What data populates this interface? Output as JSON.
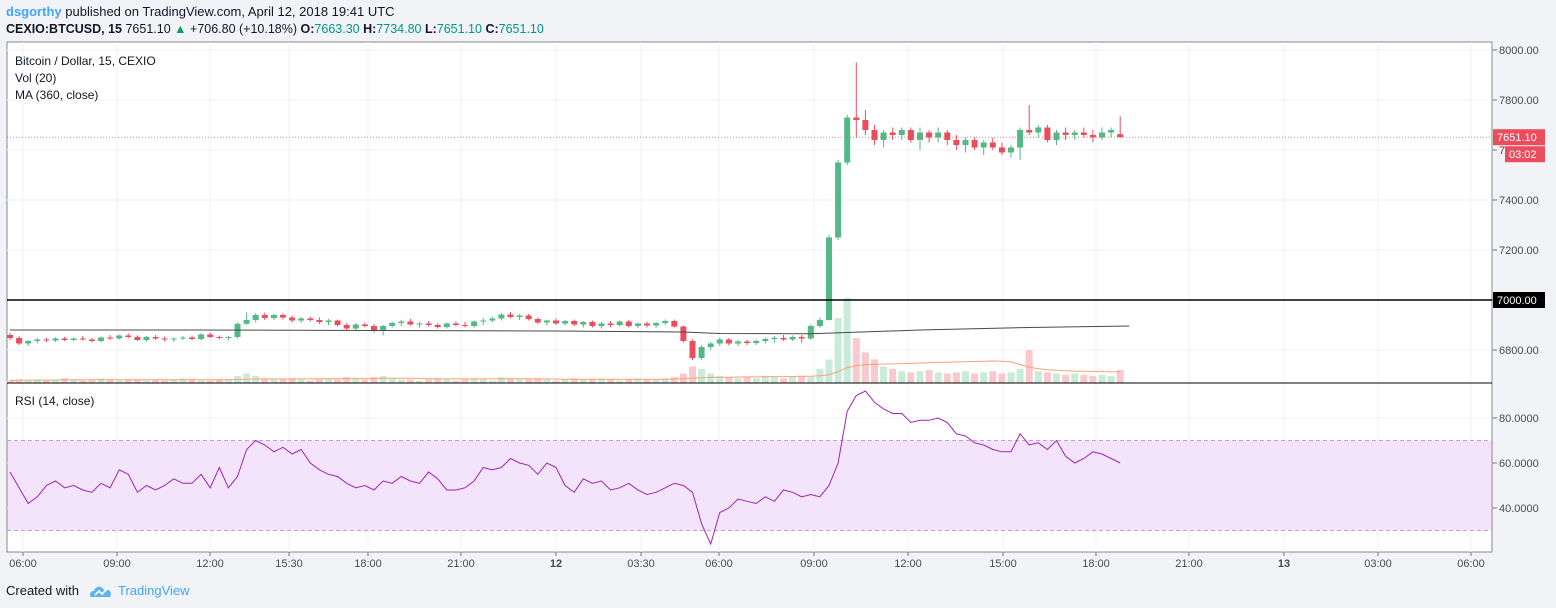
{
  "header": {
    "author": "dsgorthy",
    "published_text": "published on TradingView.com, April 12, 2018 19:41 UTC",
    "symbol": "CEXIO:BTCUSD, 15",
    "price": "7651.10",
    "change_arrow": "▲",
    "change": "+706.80 (+10.18%)",
    "open_label": "O:",
    "open": "7663.30",
    "high_label": "H:",
    "high": "7734.80",
    "low_label": "L:",
    "low": "7651.10",
    "close_label": "C:",
    "close": "7651.10"
  },
  "legend": {
    "title": "Bitcoin / Dollar, 15, CEXIO",
    "vol": "Vol (20)",
    "ma": "MA (360, close)",
    "rsi": "RSI (14, close)"
  },
  "footer": {
    "created_with": "Created with",
    "brand": "TradingView"
  },
  "colors": {
    "up": "#53b987",
    "down": "#eb4d5c",
    "ma": "#4a4a4a",
    "vol_ma": "#f7a277",
    "rsi_line": "#9c27b0",
    "rsi_band": "#f3e3fb",
    "level_line": "#000000",
    "price_badge": "#eb4d5c"
  },
  "chart_data": [
    {
      "type": "candlestick",
      "title": "Bitcoin / Dollar, 15, CEXIO",
      "ylim": [
        6660,
        8030
      ],
      "y_ticks": [
        "8000.00",
        "7800.00",
        "7600.00",
        "7400.00",
        "7200.00",
        "7000.00",
        "6800.00"
      ],
      "x_ticks": [
        "06:00",
        "09:00",
        "12:00",
        "15:30",
        "18:00",
        "21:00",
        "12",
        "03:30",
        "06:00",
        "09:00",
        "12:00",
        "15:00",
        "18:00",
        "21:00",
        "13",
        "03:00",
        "06:00"
      ],
      "horizontal_line": {
        "value": 7000,
        "label": "7000.00"
      },
      "last_price": {
        "value": 7651.1,
        "label": "7651.10",
        "countdown": "03:02"
      },
      "candles": [
        [
          6860,
          6868,
          6840,
          6848
        ],
        [
          6848,
          6856,
          6820,
          6826
        ],
        [
          6826,
          6840,
          6816,
          6836
        ],
        [
          6836,
          6848,
          6826,
          6842
        ],
        [
          6842,
          6850,
          6832,
          6838
        ],
        [
          6838,
          6850,
          6832,
          6846
        ],
        [
          6846,
          6852,
          6836,
          6840
        ],
        [
          6840,
          6850,
          6834,
          6846
        ],
        [
          6846,
          6856,
          6838,
          6842
        ],
        [
          6842,
          6848,
          6830,
          6836
        ],
        [
          6836,
          6854,
          6830,
          6850
        ],
        [
          6850,
          6860,
          6840,
          6846
        ],
        [
          6846,
          6862,
          6842,
          6858
        ],
        [
          6858,
          6866,
          6846,
          6852
        ],
        [
          6852,
          6858,
          6836,
          6840
        ],
        [
          6840,
          6856,
          6834,
          6852
        ],
        [
          6852,
          6860,
          6840,
          6846
        ],
        [
          6846,
          6854,
          6834,
          6842
        ],
        [
          6842,
          6850,
          6832,
          6846
        ],
        [
          6846,
          6856,
          6840,
          6850
        ],
        [
          6850,
          6858,
          6840,
          6844
        ],
        [
          6844,
          6868,
          6838,
          6862
        ],
        [
          6862,
          6870,
          6848,
          6852
        ],
        [
          6852,
          6858,
          6842,
          6848
        ],
        [
          6848,
          6856,
          6838,
          6852
        ],
        [
          6852,
          6910,
          6846,
          6905
        ],
        [
          6905,
          6950,
          6900,
          6920
        ],
        [
          6920,
          6948,
          6910,
          6940
        ],
        [
          6940,
          6950,
          6920,
          6928
        ],
        [
          6928,
          6944,
          6920,
          6940
        ],
        [
          6940,
          6948,
          6922,
          6930
        ],
        [
          6930,
          6938,
          6910,
          6918
        ],
        [
          6918,
          6932,
          6908,
          6926
        ],
        [
          6926,
          6934,
          6914,
          6920
        ],
        [
          6920,
          6930,
          6904,
          6912
        ],
        [
          6912,
          6924,
          6900,
          6918
        ],
        [
          6918,
          6922,
          6894,
          6900
        ],
        [
          6900,
          6908,
          6880,
          6886
        ],
        [
          6886,
          6908,
          6880,
          6902
        ],
        [
          6902,
          6910,
          6890,
          6896
        ],
        [
          6896,
          6904,
          6870,
          6876
        ],
        [
          6876,
          6900,
          6858,
          6896
        ],
        [
          6896,
          6914,
          6890,
          6908
        ],
        [
          6908,
          6920,
          6896,
          6914
        ],
        [
          6914,
          6924,
          6898,
          6902
        ],
        [
          6902,
          6912,
          6890,
          6906
        ],
        [
          6906,
          6916,
          6894,
          6900
        ],
        [
          6900,
          6908,
          6886,
          6892
        ],
        [
          6892,
          6910,
          6886,
          6906
        ],
        [
          6906,
          6914,
          6894,
          6900
        ],
        [
          6900,
          6912,
          6890,
          6896
        ],
        [
          6896,
          6918,
          6890,
          6914
        ],
        [
          6914,
          6928,
          6900,
          6918
        ],
        [
          6918,
          6934,
          6910,
          6926
        ],
        [
          6926,
          6948,
          6918,
          6942
        ],
        [
          6942,
          6952,
          6926,
          6932
        ],
        [
          6932,
          6944,
          6920,
          6938
        ],
        [
          6938,
          6944,
          6918,
          6924
        ],
        [
          6924,
          6930,
          6904,
          6910
        ],
        [
          6910,
          6922,
          6898,
          6918
        ],
        [
          6918,
          6926,
          6900,
          6906
        ],
        [
          6906,
          6920,
          6898,
          6916
        ],
        [
          6916,
          6922,
          6896,
          6902
        ],
        [
          6902,
          6916,
          6890,
          6912
        ],
        [
          6912,
          6918,
          6890,
          6896
        ],
        [
          6896,
          6912,
          6886,
          6906
        ],
        [
          6906,
          6916,
          6890,
          6900
        ],
        [
          6900,
          6918,
          6894,
          6914
        ],
        [
          6914,
          6920,
          6890,
          6896
        ],
        [
          6896,
          6910,
          6888,
          6906
        ],
        [
          6906,
          6914,
          6890,
          6898
        ],
        [
          6898,
          6912,
          6888,
          6908
        ],
        [
          6908,
          6922,
          6900,
          6916
        ],
        [
          6916,
          6922,
          6890,
          6894
        ],
        [
          6894,
          6898,
          6830,
          6836
        ],
        [
          6836,
          6842,
          6760,
          6768
        ],
        [
          6768,
          6820,
          6760,
          6812
        ],
        [
          6812,
          6832,
          6800,
          6826
        ],
        [
          6826,
          6850,
          6816,
          6842
        ],
        [
          6842,
          6848,
          6818,
          6826
        ],
        [
          6826,
          6840,
          6816,
          6834
        ],
        [
          6834,
          6842,
          6820,
          6828
        ],
        [
          6828,
          6842,
          6820,
          6836
        ],
        [
          6836,
          6850,
          6826,
          6844
        ],
        [
          6844,
          6856,
          6830,
          6848
        ],
        [
          6848,
          6860,
          6836,
          6842
        ],
        [
          6842,
          6858,
          6836,
          6852
        ],
        [
          6852,
          6860,
          6830,
          6846
        ],
        [
          6846,
          6902,
          6840,
          6896
        ],
        [
          6896,
          6930,
          6890,
          6920
        ],
        [
          6920,
          7260,
          6918,
          7250
        ],
        [
          7250,
          7560,
          7240,
          7550
        ],
        [
          7550,
          7740,
          7540,
          7730
        ],
        [
          7730,
          7950,
          7650,
          7720
        ],
        [
          7720,
          7760,
          7660,
          7680
        ],
        [
          7680,
          7700,
          7620,
          7640
        ],
        [
          7640,
          7680,
          7610,
          7670
        ],
        [
          7670,
          7690,
          7640,
          7660
        ],
        [
          7660,
          7690,
          7640,
          7680
        ],
        [
          7680,
          7690,
          7630,
          7640
        ],
        [
          7640,
          7690,
          7600,
          7670
        ],
        [
          7670,
          7680,
          7630,
          7650
        ],
        [
          7650,
          7690,
          7630,
          7670
        ],
        [
          7670,
          7680,
          7620,
          7640
        ],
        [
          7640,
          7660,
          7600,
          7620
        ],
        [
          7620,
          7650,
          7590,
          7640
        ],
        [
          7640,
          7650,
          7600,
          7610
        ],
        [
          7610,
          7640,
          7580,
          7630
        ],
        [
          7630,
          7650,
          7600,
          7610
        ],
        [
          7610,
          7630,
          7580,
          7590
        ],
        [
          7590,
          7620,
          7570,
          7610
        ],
        [
          7610,
          7690,
          7560,
          7680
        ],
        [
          7680,
          7780,
          7660,
          7670
        ],
        [
          7670,
          7700,
          7650,
          7690
        ],
        [
          7690,
          7700,
          7630,
          7640
        ],
        [
          7640,
          7680,
          7620,
          7670
        ],
        [
          7670,
          7690,
          7640,
          7660
        ],
        [
          7660,
          7680,
          7640,
          7670
        ],
        [
          7670,
          7690,
          7650,
          7660
        ],
        [
          7660,
          7680,
          7630,
          7650
        ],
        [
          7650,
          7690,
          7640,
          7670
        ],
        [
          7670,
          7690,
          7650,
          7680
        ],
        [
          7663.3,
          7734.8,
          7651.1,
          7651.1
        ]
      ],
      "ma_360": [
        [
          0,
          6880
        ],
        [
          20,
          6880
        ],
        [
          40,
          6878
        ],
        [
          60,
          6876
        ],
        [
          74,
          6872
        ],
        [
          78,
          6866
        ],
        [
          88,
          6865
        ],
        [
          100,
          6880
        ],
        [
          112,
          6890
        ],
        [
          123,
          6896
        ]
      ],
      "volume": [
        2,
        3,
        2,
        3,
        2,
        3,
        4,
        3,
        2,
        3,
        4,
        3,
        2,
        3,
        3,
        2,
        3,
        2,
        3,
        4,
        3,
        2,
        2,
        3,
        3,
        6,
        8,
        6,
        4,
        3,
        3,
        4,
        3,
        2,
        3,
        4,
        3,
        5,
        4,
        3,
        5,
        6,
        4,
        3,
        3,
        2,
        3,
        4,
        3,
        2,
        3,
        4,
        3,
        2,
        5,
        4,
        3,
        3,
        4,
        3,
        2,
        3,
        4,
        3,
        3,
        4,
        3,
        2,
        3,
        4,
        3,
        3,
        4,
        5,
        8,
        14,
        12,
        8,
        6,
        5,
        4,
        5,
        4,
        6,
        5,
        4,
        5,
        6,
        5,
        12,
        20,
        55,
        72,
        38,
        26,
        20,
        14,
        12,
        10,
        9,
        10,
        11,
        9,
        8,
        9,
        10,
        8,
        9,
        10,
        8,
        9,
        12,
        28,
        10,
        9,
        8,
        7,
        8,
        7,
        6,
        7,
        6,
        11
      ]
    },
    {
      "type": "line",
      "title": "RSI (14, close)",
      "ylim": [
        25,
        95
      ],
      "y_ticks": [
        "80.0000",
        "60.0000",
        "40.0000"
      ],
      "band": [
        30,
        70
      ],
      "values": [
        56,
        49,
        42,
        45,
        50,
        52,
        49,
        50,
        48,
        47,
        51,
        49,
        57,
        55,
        47,
        50,
        48,
        50,
        53,
        51,
        51,
        55,
        49,
        58,
        49,
        54,
        66,
        70,
        68,
        65,
        67,
        64,
        66,
        60,
        57,
        55,
        54,
        51,
        49,
        50,
        48,
        52,
        51,
        54,
        52,
        51,
        56,
        53,
        48,
        48,
        49,
        52,
        58,
        57,
        58,
        62,
        60,
        59,
        55,
        60,
        58,
        50,
        47,
        53,
        51,
        52,
        48,
        49,
        51,
        48,
        46,
        47,
        49,
        51,
        50,
        47,
        33,
        24,
        38,
        40,
        44,
        43,
        42,
        45,
        43,
        48,
        47,
        45,
        46,
        45,
        50,
        60,
        83,
        90,
        92,
        87,
        84,
        82,
        82,
        78,
        79,
        79,
        80,
        78,
        73,
        72,
        69,
        68,
        66,
        65,
        65,
        73,
        68,
        69,
        66,
        70,
        63,
        60,
        62,
        65,
        64,
        62,
        60
      ]
    }
  ]
}
